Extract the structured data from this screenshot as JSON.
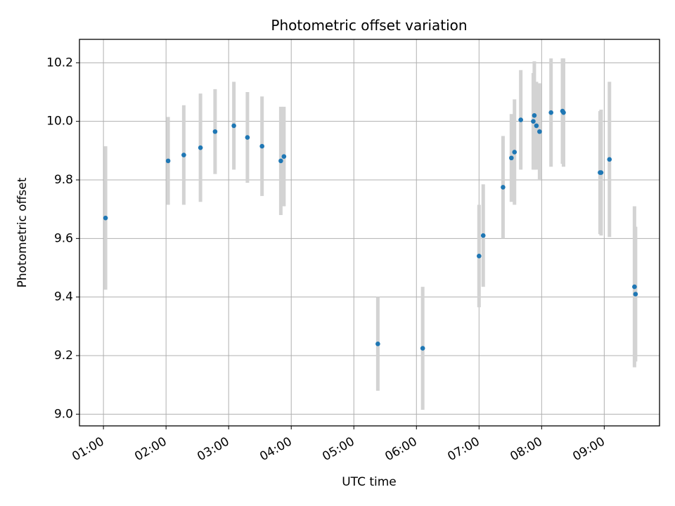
{
  "chart_data": {
    "type": "scatter",
    "title": "Photometric offset variation",
    "xlabel": "UTC time",
    "ylabel": "Photometric offset",
    "x_tick_labels": [
      "01:00",
      "02:00",
      "03:00",
      "04:00",
      "05:00",
      "06:00",
      "07:00",
      "08:00",
      "09:00"
    ],
    "y_tick_labels": [
      "9.0",
      "9.2",
      "9.4",
      "9.6",
      "9.8",
      "10.0",
      "10.2"
    ],
    "xlim": [
      "00:37",
      "09:53"
    ],
    "ylim": [
      8.96,
      10.28
    ],
    "grid": true,
    "marker_color": "#1f77b4",
    "errorbar_color": "#d3d3d3",
    "series": [
      {
        "x": [
          "01:02",
          "02:02",
          "02:17",
          "02:33",
          "02:47",
          "03:05",
          "03:18",
          "03:32",
          "03:50",
          "03:53",
          "05:23",
          "06:06",
          "07:00",
          "07:04",
          "07:23",
          "07:31",
          "07:34",
          "07:40",
          "07:52",
          "07:53",
          "07:55",
          "07:58",
          "08:09",
          "08:20",
          "08:21",
          "08:56",
          "08:57",
          "09:05",
          "09:29",
          "09:30"
        ],
        "y": [
          9.67,
          9.865,
          9.885,
          9.91,
          9.965,
          9.985,
          9.945,
          9.915,
          9.865,
          9.88,
          9.24,
          9.225,
          9.54,
          9.61,
          9.775,
          9.875,
          9.895,
          10.005,
          10.0,
          10.02,
          9.985,
          9.965,
          10.03,
          10.035,
          10.03,
          9.825,
          9.825,
          9.87,
          9.435,
          9.41
        ],
        "yerr": [
          0.245,
          0.15,
          0.17,
          0.185,
          0.145,
          0.15,
          0.155,
          0.17,
          0.185,
          0.17,
          0.16,
          0.21,
          0.175,
          0.175,
          0.175,
          0.15,
          0.18,
          0.17,
          0.165,
          0.185,
          0.15,
          0.165,
          0.185,
          0.18,
          0.185,
          0.21,
          0.215,
          0.265,
          0.275,
          0.23
        ]
      }
    ]
  }
}
